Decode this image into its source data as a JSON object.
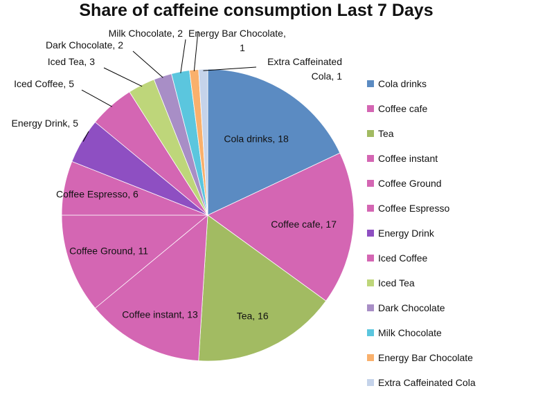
{
  "chart_data": {
    "type": "pie",
    "title": "Share of caffeine consumption Last 7 Days",
    "legend_position": "right",
    "categories": [
      "Cola drinks",
      "Coffee cafe",
      "Tea",
      "Coffee instant",
      "Coffee Ground",
      "Coffee Espresso",
      "Energy Drink",
      "Iced Coffee",
      "Iced Tea",
      "Dark Chocolate",
      "Milk Chocolate",
      "Energy Bar Chocolate",
      "Extra Caffeinated Cola"
    ],
    "values": [
      18,
      17,
      16,
      13,
      11,
      6,
      5,
      5,
      3,
      2,
      2,
      1,
      1
    ],
    "colors": [
      "#5b8bc2",
      "#d466b3",
      "#a2bb62",
      "#d466b3",
      "#d466b3",
      "#d466b3",
      "#8e4fc2",
      "#d466b3",
      "#bed67a",
      "#a88ec6",
      "#5bc6de",
      "#f9b06c",
      "#c5d3ea"
    ],
    "data_labels": [
      "Cola drinks, 18",
      "Coffee cafe, 17",
      "Tea, 16",
      "Coffee instant, 13",
      "Coffee Ground, 11",
      "Coffee Espresso, 6",
      "Energy Drink, 5",
      "Iced Coffee, 5",
      "Iced Tea, 3",
      "Dark Chocolate, 2",
      "Milk Chocolate, 2",
      "Energy Bar Chocolate, 1",
      "Extra Caffeinated Cola, 1"
    ]
  }
}
